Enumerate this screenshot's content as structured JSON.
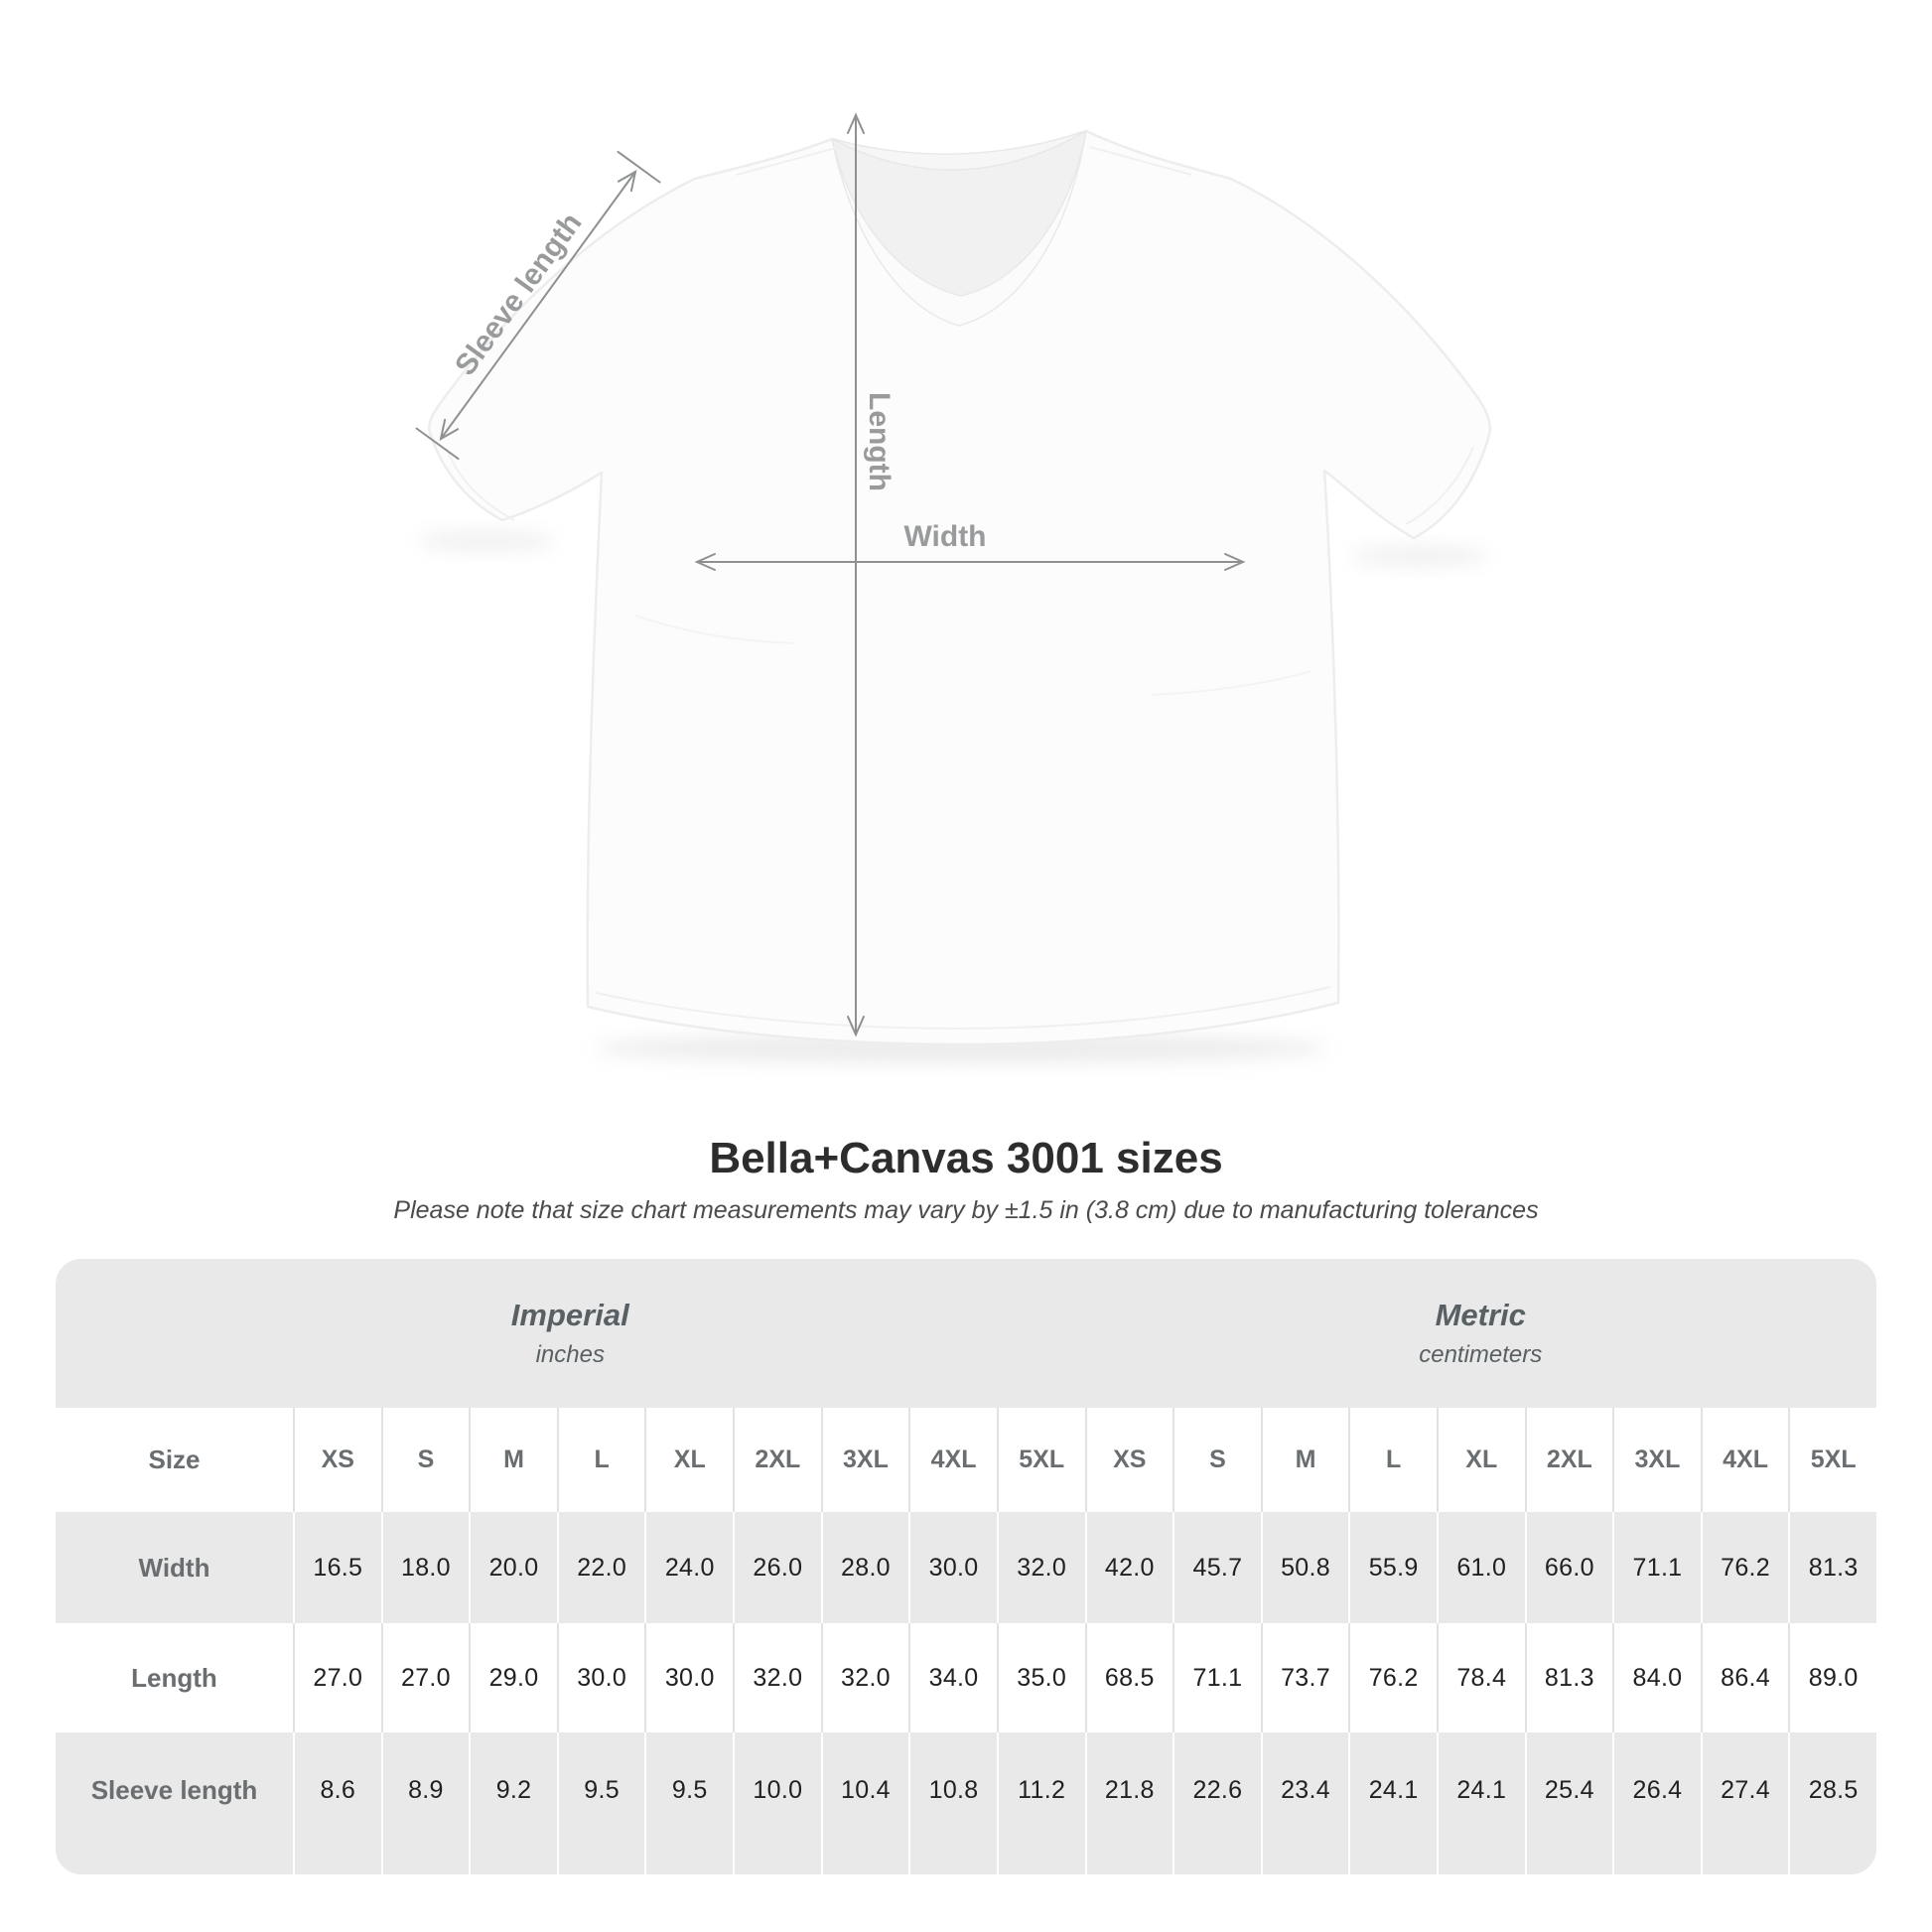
{
  "diagram": {
    "sleeve_length_label": "Sleeve length",
    "length_label": "Length",
    "width_label": "Width"
  },
  "title": "Bella+Canvas 3001 sizes",
  "subtitle": "Please note that size chart measurements may vary by ±1.5 in (3.8 cm) due to manufacturing tolerances",
  "table": {
    "unit_groups": [
      {
        "name": "Imperial",
        "unit": "inches"
      },
      {
        "name": "Metric",
        "unit": "centimeters"
      }
    ],
    "size_label": "Size",
    "sizes": [
      "XS",
      "S",
      "M",
      "L",
      "XL",
      "2XL",
      "3XL",
      "4XL",
      "5XL"
    ],
    "rows": [
      {
        "label": "Width",
        "imperial": [
          "16.5",
          "18.0",
          "20.0",
          "22.0",
          "24.0",
          "26.0",
          "28.0",
          "30.0",
          "32.0"
        ],
        "metric": [
          "42.0",
          "45.7",
          "50.8",
          "55.9",
          "61.0",
          "66.0",
          "71.1",
          "76.2",
          "81.3"
        ]
      },
      {
        "label": "Length",
        "imperial": [
          "27.0",
          "27.0",
          "29.0",
          "30.0",
          "30.0",
          "32.0",
          "32.0",
          "34.0",
          "35.0"
        ],
        "metric": [
          "68.5",
          "71.1",
          "73.7",
          "76.2",
          "78.4",
          "81.3",
          "84.0",
          "86.4",
          "89.0"
        ]
      },
      {
        "label": "Sleeve length",
        "imperial": [
          "8.6",
          "8.9",
          "9.2",
          "9.5",
          "9.5",
          "10.0",
          "10.4",
          "10.8",
          "11.2"
        ],
        "metric": [
          "21.8",
          "22.6",
          "23.4",
          "24.1",
          "24.1",
          "25.4",
          "26.4",
          "27.4",
          "28.5"
        ]
      }
    ]
  },
  "colors": {
    "table_background": "#e9e9e9",
    "row_white": "#ffffff",
    "annotation_gray": "#8e9092",
    "label_gray": "#989a9c",
    "title_color": "#2d2d2d",
    "value_color": "#212121"
  },
  "chart_data": {
    "type": "table",
    "title": "Bella+Canvas 3001 sizes",
    "note": "Size chart measurements may vary by ±1.5 in (3.8 cm) due to manufacturing tolerances",
    "sizes": [
      "XS",
      "S",
      "M",
      "L",
      "XL",
      "2XL",
      "3XL",
      "4XL",
      "5XL"
    ],
    "units": {
      "imperial": "inches",
      "metric": "centimeters"
    },
    "rows": [
      {
        "measurement": "Width",
        "imperial_inches": [
          16.5,
          18.0,
          20.0,
          22.0,
          24.0,
          26.0,
          28.0,
          30.0,
          32.0
        ],
        "metric_cm": [
          42.0,
          45.7,
          50.8,
          55.9,
          61.0,
          66.0,
          71.1,
          76.2,
          81.3
        ]
      },
      {
        "measurement": "Length",
        "imperial_inches": [
          27.0,
          27.0,
          29.0,
          30.0,
          30.0,
          32.0,
          32.0,
          34.0,
          35.0
        ],
        "metric_cm": [
          68.5,
          71.1,
          73.7,
          76.2,
          78.4,
          81.3,
          84.0,
          86.4,
          89.0
        ]
      },
      {
        "measurement": "Sleeve length",
        "imperial_inches": [
          8.6,
          8.9,
          9.2,
          9.5,
          9.5,
          10.0,
          10.4,
          10.8,
          11.2
        ],
        "metric_cm": [
          21.8,
          22.6,
          23.4,
          24.1,
          24.1,
          25.4,
          26.4,
          27.4,
          28.5
        ]
      }
    ]
  }
}
